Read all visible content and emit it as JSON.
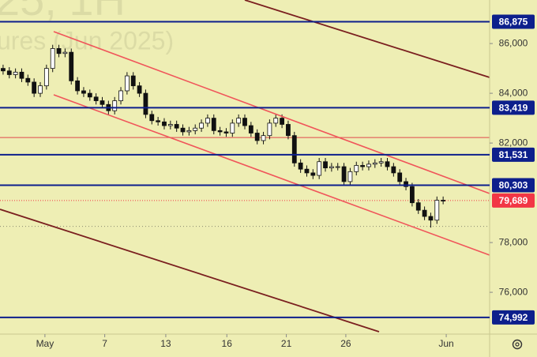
{
  "chart_data": {
    "type": "candlestick",
    "watermark": [
      "25, 1H",
      "ures (Jun 2025)"
    ],
    "xlim": [
      -0.5,
      78.5
    ],
    "xticks": [
      {
        "value": 6.75,
        "label": "May"
      },
      {
        "value": 16.4,
        "label": "7"
      },
      {
        "value": 26.25,
        "label": "13"
      },
      {
        "value": 36.1,
        "label": "16"
      },
      {
        "value": 45.7,
        "label": "21"
      },
      {
        "value": 55.3,
        "label": "26"
      },
      {
        "value": 71.5,
        "label": "Jun"
      }
    ],
    "ylim": [
      74320,
      87750
    ],
    "yticks": [
      {
        "value": 76000,
        "label": "76,000"
      },
      {
        "value": 78000,
        "label": "78,000"
      },
      {
        "value": 82000,
        "label": "82,000"
      },
      {
        "value": 84000,
        "label": "84,000"
      },
      {
        "value": 86000,
        "label": "86,000"
      }
    ],
    "up_color": "#ffffff",
    "down_color": "#111111",
    "open": [
      85000,
      84900,
      84750,
      84850,
      84600,
      84450,
      84000,
      84300,
      85000,
      85800,
      85600,
      85650,
      84500,
      84100,
      84000,
      83850,
      83700,
      83550,
      83300,
      83700,
      84100,
      84700,
      84300,
      84000,
      83150,
      82900,
      82850,
      82700,
      82750,
      82600,
      82450,
      82500,
      82600,
      82800,
      83000,
      82500,
      82450,
      82400,
      82800,
      83000,
      82700,
      82400,
      82100,
      82300,
      82800,
      83000,
      82750,
      82300,
      81200,
      80950,
      80800,
      80700,
      81250,
      81000,
      81050,
      81050,
      80450,
      80850,
      81100,
      81050,
      81150,
      81200,
      81250,
      81050,
      80800,
      80450,
      80250,
      79600,
      79300,
      79050,
      78900,
      79700
    ],
    "high": [
      85150,
      85050,
      85000,
      85000,
      84750,
      84600,
      84450,
      85150,
      85950,
      85950,
      85800,
      85800,
      84650,
      84250,
      84150,
      84000,
      83850,
      83700,
      83850,
      84250,
      84850,
      84850,
      84450,
      84150,
      83300,
      83050,
      83000,
      82900,
      82900,
      82750,
      82650,
      82750,
      82950,
      83150,
      83150,
      82650,
      82600,
      82950,
      83150,
      83150,
      82850,
      82550,
      82450,
      82950,
      83150,
      83150,
      82900,
      82450,
      81350,
      81100,
      80950,
      81400,
      81400,
      81200,
      81200,
      81200,
      81000,
      81250,
      81250,
      81300,
      81350,
      81400,
      81400,
      81200,
      80950,
      80600,
      80400,
      79750,
      79450,
      79200,
      79850,
      79850
    ],
    "low": [
      84750,
      84600,
      84600,
      84450,
      84300,
      83850,
      83850,
      84150,
      84850,
      85450,
      85450,
      84350,
      83950,
      83850,
      83700,
      83550,
      83400,
      83150,
      83150,
      83550,
      83950,
      84150,
      83850,
      83000,
      82750,
      82700,
      82550,
      82550,
      82450,
      82300,
      82300,
      82350,
      82450,
      82650,
      82350,
      82300,
      82250,
      82250,
      82650,
      82550,
      82250,
      81950,
      81950,
      82150,
      82650,
      82600,
      82150,
      81050,
      80800,
      80650,
      80550,
      80550,
      80850,
      80850,
      80900,
      80300,
      80300,
      80700,
      80900,
      80900,
      81000,
      81050,
      80900,
      80650,
      80300,
      80100,
      79450,
      79150,
      78900,
      78600,
      78750,
      79539
    ],
    "close": [
      84900,
      84750,
      84850,
      84600,
      84450,
      84000,
      84300,
      85000,
      85800,
      85600,
      85650,
      84500,
      84100,
      84000,
      83850,
      83700,
      83550,
      83300,
      83700,
      84100,
      84700,
      84300,
      84000,
      83150,
      82900,
      82850,
      82700,
      82750,
      82600,
      82450,
      82500,
      82600,
      82800,
      83000,
      82500,
      82450,
      82400,
      82800,
      83000,
      82700,
      82400,
      82100,
      82300,
      82800,
      83000,
      82750,
      82300,
      81200,
      80950,
      80800,
      80700,
      81250,
      81000,
      81050,
      81050,
      80450,
      80850,
      81100,
      81050,
      81150,
      81200,
      81250,
      81050,
      80800,
      80450,
      80250,
      79600,
      79300,
      79050,
      78900,
      79700,
      79689
    ],
    "levels": [
      {
        "value": 86875,
        "label": "86,875"
      },
      {
        "value": 83419,
        "label": "83,419"
      },
      {
        "value": 81531,
        "label": "81,531"
      },
      {
        "value": 80303,
        "label": "80,303"
      },
      {
        "value": 74992,
        "label": "74,992"
      }
    ],
    "level_color": "#0d1f8c",
    "reference_lines": [
      {
        "value": 82220,
        "color": "#e0474c",
        "style": "solid"
      },
      {
        "value": 78650,
        "color": "#8a8a70",
        "style": "dotted"
      }
    ],
    "last_price": {
      "value": 79689,
      "label": "79,689",
      "color": "#f23645"
    }
  }
}
